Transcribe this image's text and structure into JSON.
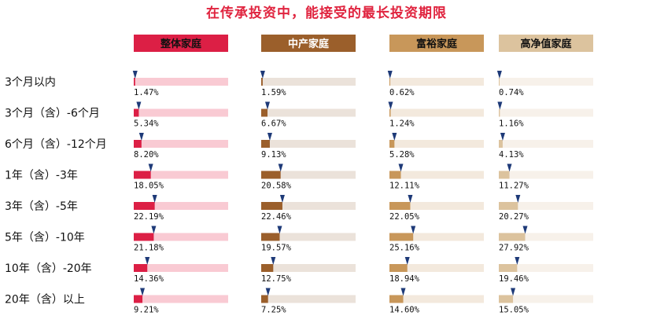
{
  "title": "在传承投资中，能接受的最长投资期限",
  "chart_data": {
    "type": "bar",
    "title": "在传承投资中，能接受的最长投资期限",
    "categories": [
      "3个月以内",
      "3个月（含）-6个月",
      "6个月（含）-12个月",
      "1年（含）-3年",
      "3年（含）-5年",
      "5年（含）-10年",
      "10年（含）-20年",
      "20年（含）以上"
    ],
    "series": [
      {
        "name": "整体家庭",
        "values": [
          1.47,
          5.34,
          8.2,
          18.05,
          22.19,
          21.18,
          14.36,
          9.21
        ],
        "labels": [
          "1.47%",
          "5.34%",
          "8.20%",
          "18.05%",
          "22.19%",
          "21.18%",
          "14.36%",
          "9.21%"
        ],
        "color": "#dc1f45",
        "track_color": "#f9cad3",
        "header_text_color": "#111111"
      },
      {
        "name": "中产家庭",
        "values": [
          1.59,
          6.67,
          9.13,
          20.58,
          22.46,
          19.57,
          12.75,
          7.25
        ],
        "labels": [
          "1.59%",
          "6.67%",
          "9.13%",
          "20.58%",
          "22.46%",
          "19.57%",
          "12.75%",
          "7.25%"
        ],
        "color": "#9b5f2b",
        "track_color": "#ebe2da",
        "header_text_color": "#ffffff"
      },
      {
        "name": "富裕家庭",
        "values": [
          0.62,
          1.24,
          5.28,
          12.11,
          22.05,
          25.16,
          18.94,
          14.6
        ],
        "labels": [
          "0.62%",
          "1.24%",
          "5.28%",
          "12.11%",
          "22.05%",
          "25.16%",
          "18.94%",
          "14.60%"
        ],
        "color": "#c8975a",
        "track_color": "#f3e9dd",
        "header_text_color": "#111111"
      },
      {
        "name": "高净值家庭",
        "values": [
          0.74,
          1.16,
          4.13,
          11.27,
          20.27,
          27.92,
          19.46,
          15.05
        ],
        "labels": [
          "0.74%",
          "1.16%",
          "4.13%",
          "11.27%",
          "20.27%",
          "27.92%",
          "19.46%",
          "15.05%"
        ],
        "color": "#dcc39e",
        "track_color": "#f7f1ea",
        "header_text_color": "#111111"
      }
    ],
    "marker_color": "#1e3a78",
    "xlim": [
      0,
      100
    ],
    "grid": false,
    "legend": "top"
  }
}
